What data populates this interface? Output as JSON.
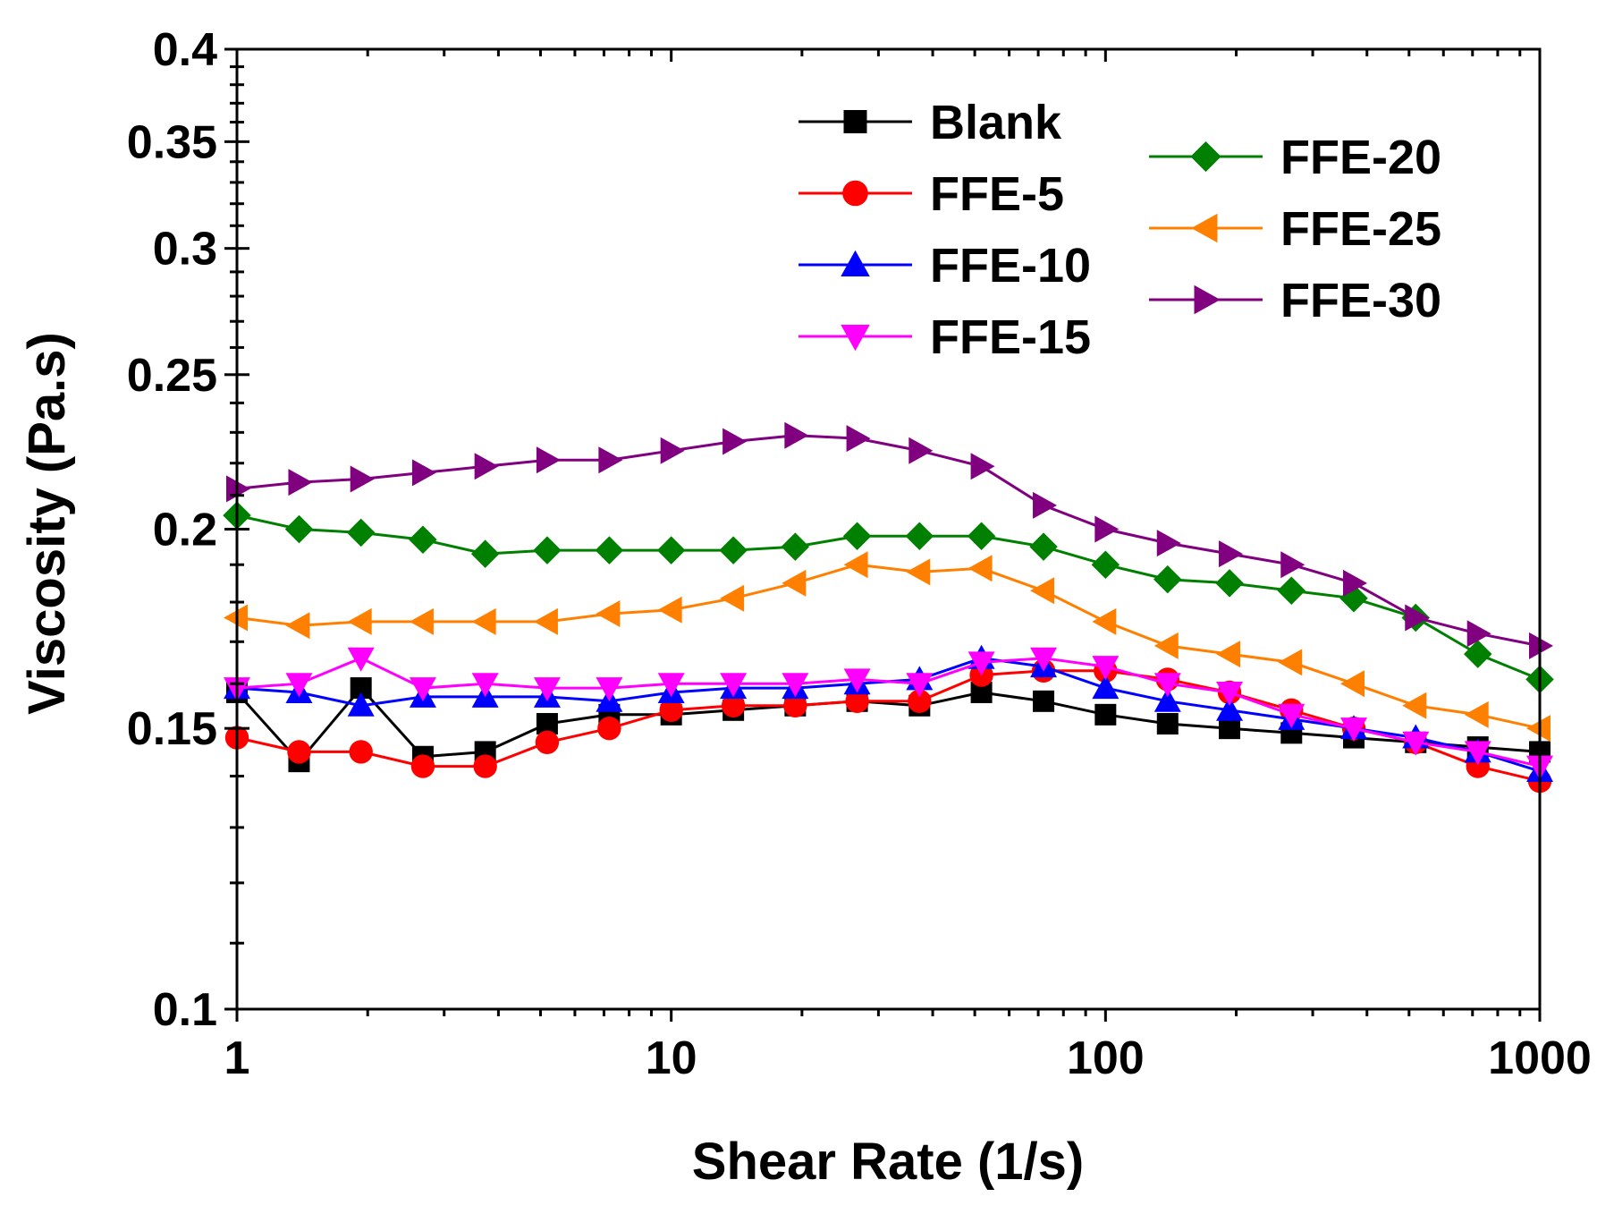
{
  "chart_data": {
    "type": "line",
    "title": "",
    "xlabel": "Shear Rate (1/s)",
    "ylabel": "Viscosity (Pa.s)",
    "xscale": "log",
    "yscale": "log",
    "xlim": [
      1,
      1000
    ],
    "ylim": [
      0.1,
      0.4
    ],
    "x_ticks": [
      1,
      10,
      100,
      1000
    ],
    "x_tick_labels": [
      "1",
      "10",
      "100",
      "1000"
    ],
    "y_ticks": [
      0.1,
      0.15,
      0.2,
      0.25,
      0.3,
      0.35,
      0.4
    ],
    "y_tick_labels": [
      "0.1",
      "0.15",
      "0.2",
      "0.25",
      "0.3",
      "0.35",
      "0.4"
    ],
    "grid": false,
    "legend_position": "top-right",
    "x": [
      1,
      1.39,
      1.93,
      2.68,
      3.73,
      5.18,
      7.2,
      10,
      13.9,
      19.3,
      26.8,
      37.3,
      51.8,
      72,
      100,
      139,
      193,
      268,
      373,
      518,
      720,
      1000
    ],
    "series": [
      {
        "name": "Blank",
        "color": "#000000",
        "marker": "square",
        "values": [
          0.158,
          0.143,
          0.159,
          0.144,
          0.145,
          0.151,
          0.153,
          0.153,
          0.154,
          0.155,
          0.156,
          0.155,
          0.158,
          0.156,
          0.153,
          0.151,
          0.15,
          0.149,
          0.148,
          0.147,
          0.146,
          0.145
        ]
      },
      {
        "name": "FFE-5",
        "color": "#ff0000",
        "marker": "circle",
        "values": [
          0.148,
          0.145,
          0.145,
          0.142,
          0.142,
          0.147,
          0.15,
          0.154,
          0.155,
          0.155,
          0.156,
          0.156,
          0.162,
          0.163,
          0.163,
          0.161,
          0.158,
          0.154,
          0.15,
          0.147,
          0.142,
          0.139
        ]
      },
      {
        "name": "FFE-10",
        "color": "#0000ff",
        "marker": "triangle-up",
        "values": [
          0.159,
          0.158,
          0.155,
          0.157,
          0.157,
          0.157,
          0.156,
          0.158,
          0.159,
          0.159,
          0.16,
          0.161,
          0.166,
          0.164,
          0.159,
          0.156,
          0.154,
          0.152,
          0.15,
          0.148,
          0.145,
          0.141
        ]
      },
      {
        "name": "FFE-15",
        "color": "#ff00ff",
        "marker": "triangle-down",
        "values": [
          0.159,
          0.16,
          0.166,
          0.159,
          0.16,
          0.159,
          0.159,
          0.16,
          0.16,
          0.16,
          0.161,
          0.16,
          0.165,
          0.166,
          0.164,
          0.16,
          0.158,
          0.153,
          0.15,
          0.147,
          0.145,
          0.142
        ]
      },
      {
        "name": "FFE-20",
        "color": "#008000",
        "marker": "diamond",
        "values": [
          0.204,
          0.2,
          0.199,
          0.197,
          0.193,
          0.194,
          0.194,
          0.194,
          0.194,
          0.195,
          0.198,
          0.198,
          0.198,
          0.195,
          0.19,
          0.186,
          0.185,
          0.183,
          0.181,
          0.176,
          0.167,
          0.161
        ]
      },
      {
        "name": "FFE-25",
        "color": "#ff8000",
        "marker": "triangle-left",
        "values": [
          0.176,
          0.174,
          0.175,
          0.175,
          0.175,
          0.175,
          0.177,
          0.178,
          0.181,
          0.185,
          0.19,
          0.188,
          0.189,
          0.183,
          0.175,
          0.169,
          0.167,
          0.165,
          0.16,
          0.155,
          0.153,
          0.15
        ]
      },
      {
        "name": "FFE-30",
        "color": "#800080",
        "marker": "triangle-right",
        "values": [
          0.212,
          0.214,
          0.215,
          0.217,
          0.219,
          0.221,
          0.221,
          0.224,
          0.227,
          0.229,
          0.228,
          0.224,
          0.219,
          0.207,
          0.2,
          0.196,
          0.193,
          0.19,
          0.185,
          0.176,
          0.172,
          0.169
        ]
      }
    ]
  }
}
